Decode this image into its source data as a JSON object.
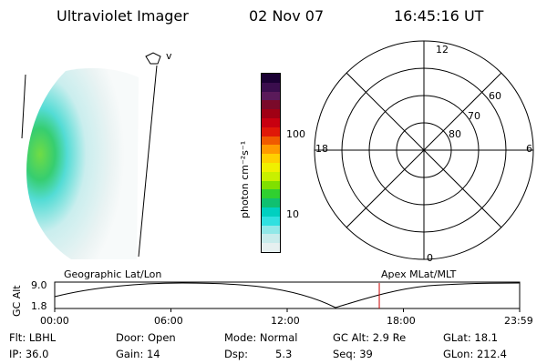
{
  "header": {
    "title": "Ultraviolet Imager",
    "date": "02 Nov 07",
    "time": "16:45:16 UT"
  },
  "image_marker": "v",
  "colorbar": {
    "unit_label": "photon cm⁻²s⁻¹",
    "ticks": [
      "100",
      "10"
    ],
    "colors": [
      "#1a0033",
      "#3a0d4d",
      "#5a1a5a",
      "#7a0a2a",
      "#a00014",
      "#c80010",
      "#e01808",
      "#f05a00",
      "#ff9a00",
      "#ffd000",
      "#f0f000",
      "#c8f000",
      "#80e000",
      "#30d030",
      "#10c070",
      "#00d0c0",
      "#30e0e0",
      "#90e8e8",
      "#c8ecec",
      "#e6f0f0"
    ]
  },
  "polar_plot": {
    "mlt_labels": {
      "top": "12",
      "left": "18",
      "right": "6",
      "bottom": "0"
    },
    "lat_labels": [
      "60",
      "70",
      "80"
    ]
  },
  "timeline": {
    "left_label": "Geographic Lat/Lon",
    "right_label": "Apex  MLat/MLT",
    "axis_title": "GC Alt",
    "y_max": "9.0",
    "y_min": "1.8",
    "x_ticks": [
      "00:00",
      "06:00",
      "12:00",
      "18:00",
      "23:59"
    ],
    "current_time_hours": 16.754,
    "marker_color": "#cc0000"
  },
  "info": {
    "flt": "Flt: LBHL",
    "ip": "IP: 36.0",
    "door": "Door: Open",
    "gain": "Gain: 14",
    "mode": "Mode: Normal",
    "dsp_label": "Dsp:",
    "dsp_value": "5.3",
    "gc_alt": "GC Alt: 2.9 Re",
    "seq": "Seq: 39",
    "glat": "GLat:  18.1",
    "glon": "GLon: 212.4"
  }
}
